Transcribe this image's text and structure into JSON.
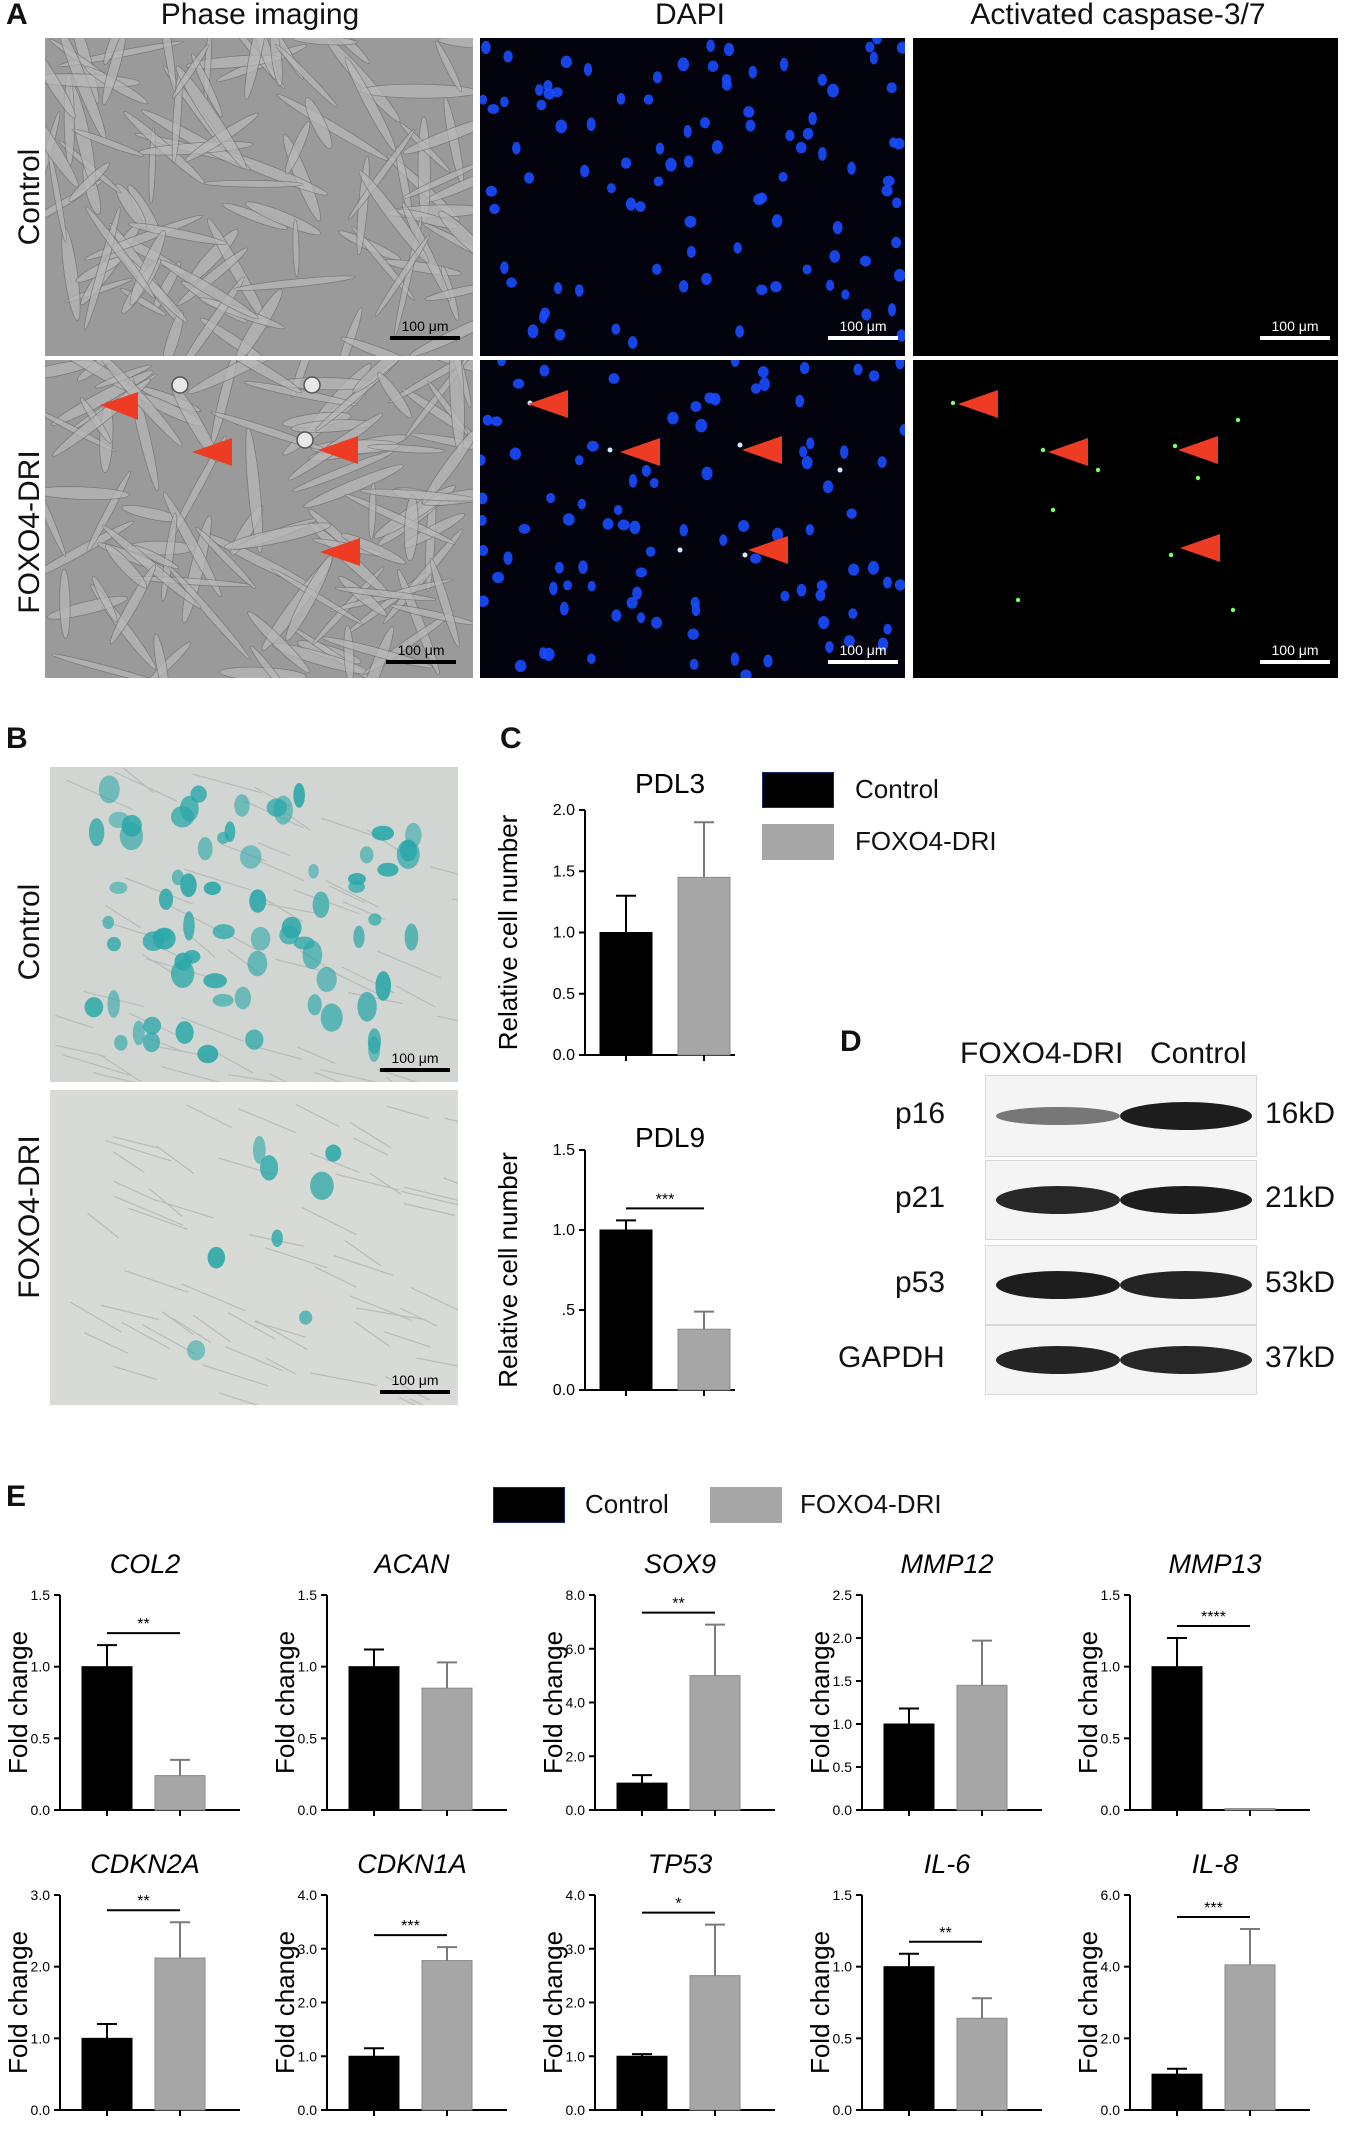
{
  "panel_letters": {
    "a": "A",
    "b": "B",
    "c": "C",
    "d": "D",
    "e": "E"
  },
  "panel_a": {
    "columns": [
      "Phase imaging",
      "DAPI",
      "Activated caspase-3/7"
    ],
    "rows": [
      "Control",
      "FOXO4-DRI"
    ],
    "scale": "100 μm"
  },
  "panel_b": {
    "rows": [
      "Control",
      "FOXO4-DRI"
    ],
    "scale": "100 μm"
  },
  "legend": {
    "control": "Control",
    "foxo": "FOXO4-DRI"
  },
  "colors": {
    "control": "#000000",
    "foxo": "#a6a6a6",
    "arrow": "#ee3b24",
    "dapi": "#1a4bff",
    "caspase": "#7dff6a",
    "xgal": "#2aa7a8"
  },
  "panel_d": {
    "lanes": [
      "FOXO4-DRI",
      "Control"
    ],
    "proteins": [
      {
        "name": "p16",
        "size": "16kD"
      },
      {
        "name": "p21",
        "size": "21kD"
      },
      {
        "name": "p53",
        "size": "53kD"
      },
      {
        "name": "GAPDH",
        "size": "37kD"
      }
    ]
  },
  "chart_data": [
    {
      "type": "bar",
      "title": "PDL3",
      "ylabel": "Relative cell number",
      "categories": [
        "Control",
        "FOXO4-DRI"
      ],
      "values": [
        1.0,
        1.45
      ],
      "errors": [
        0.3,
        0.45
      ],
      "ylim": [
        0,
        2.0
      ],
      "ticks": [
        "0.0",
        "0.5",
        "1.0",
        "1.5",
        "2.0"
      ],
      "tick_values": [
        0,
        0.5,
        1.0,
        1.5,
        2.0
      ],
      "sig": ""
    },
    {
      "type": "bar",
      "title": "PDL9",
      "ylabel": "Relative cell number",
      "categories": [
        "Control",
        "FOXO4-DRI"
      ],
      "values": [
        1.0,
        0.38
      ],
      "errors": [
        0.06,
        0.11
      ],
      "ylim": [
        0,
        1.5
      ],
      "ticks": [
        "0.0",
        ".5",
        "1.0",
        "1.5"
      ],
      "tick_values": [
        0,
        0.5,
        1.0,
        1.5
      ],
      "sig": "***"
    },
    {
      "type": "bar",
      "title": "COL2",
      "ylabel": "Fold change",
      "categories": [
        "Control",
        "FOXO4-DRI"
      ],
      "values": [
        1.0,
        0.24
      ],
      "errors": [
        0.15,
        0.11
      ],
      "ylim": [
        0,
        1.5
      ],
      "ticks": [
        "0.0",
        "0.5",
        "1.0",
        "1.5"
      ],
      "tick_values": [
        0,
        0.5,
        1.0,
        1.5
      ],
      "sig": "**"
    },
    {
      "type": "bar",
      "title": "ACAN",
      "ylabel": "Fold change",
      "categories": [
        "Control",
        "FOXO4-DRI"
      ],
      "values": [
        1.0,
        0.85
      ],
      "errors": [
        0.12,
        0.18
      ],
      "ylim": [
        0,
        1.5
      ],
      "ticks": [
        "0.0",
        "0.5",
        "1.0",
        "1.5"
      ],
      "tick_values": [
        0,
        0.5,
        1.0,
        1.5
      ],
      "sig": ""
    },
    {
      "type": "bar",
      "title": "SOX9",
      "ylabel": "Fold change",
      "categories": [
        "Control",
        "FOXO4-DRI"
      ],
      "values": [
        1.0,
        5.0
      ],
      "errors": [
        0.3,
        1.9
      ],
      "ylim": [
        0,
        8.0
      ],
      "ticks": [
        "0.0",
        "2.0",
        "4.0",
        "6.0",
        "8.0"
      ],
      "tick_values": [
        0,
        2,
        4,
        6,
        8
      ],
      "sig": "**"
    },
    {
      "type": "bar",
      "title": "MMP12",
      "ylabel": "Fold change",
      "categories": [
        "Control",
        "FOXO4-DRI"
      ],
      "values": [
        1.0,
        1.45
      ],
      "errors": [
        0.18,
        0.52
      ],
      "ylim": [
        0,
        2.5
      ],
      "ticks": [
        "0.0",
        "0.5",
        "1.0",
        "1.5",
        "2.0",
        "2.5"
      ],
      "tick_values": [
        0,
        0.5,
        1.0,
        1.5,
        2.0,
        2.5
      ],
      "sig": ""
    },
    {
      "type": "bar",
      "title": "MMP13",
      "ylabel": "Fold change",
      "categories": [
        "Control",
        "FOXO4-DRI"
      ],
      "values": [
        1.0,
        0.01
      ],
      "errors": [
        0.2,
        0.0
      ],
      "ylim": [
        0,
        1.5
      ],
      "ticks": [
        "0.0",
        "0.5",
        "1.0",
        "1.5"
      ],
      "tick_values": [
        0,
        0.5,
        1.0,
        1.5
      ],
      "sig": "****"
    },
    {
      "type": "bar",
      "title": "CDKN2A",
      "ylabel": "Fold change",
      "categories": [
        "Control",
        "FOXO4-DRI"
      ],
      "values": [
        1.0,
        2.12
      ],
      "errors": [
        0.2,
        0.5
      ],
      "ylim": [
        0,
        3.0
      ],
      "ticks": [
        "0.0",
        "1.0",
        "2.0",
        "3.0"
      ],
      "tick_values": [
        0,
        1,
        2,
        3
      ],
      "sig": "**"
    },
    {
      "type": "bar",
      "title": "CDKN1A",
      "ylabel": "Fold change",
      "categories": [
        "Control",
        "FOXO4-DRI"
      ],
      "values": [
        1.0,
        2.78
      ],
      "errors": [
        0.15,
        0.25
      ],
      "ylim": [
        0,
        4.0
      ],
      "ticks": [
        "0.0",
        "1.0",
        "2.0",
        "3.0",
        "4.0"
      ],
      "tick_values": [
        0,
        1,
        2,
        3,
        4
      ],
      "sig": "***"
    },
    {
      "type": "bar",
      "title": "TP53",
      "ylabel": "Fold change",
      "categories": [
        "Control",
        "FOXO4-DRI"
      ],
      "values": [
        1.0,
        2.5
      ],
      "errors": [
        0.04,
        0.95
      ],
      "ylim": [
        0,
        4.0
      ],
      "ticks": [
        "0.0",
        "1.0",
        "2.0",
        "3.0",
        "4.0"
      ],
      "tick_values": [
        0,
        1,
        2,
        3,
        4
      ],
      "sig": "*"
    },
    {
      "type": "bar",
      "title": "IL-6",
      "ylabel": "Fold change",
      "categories": [
        "Control",
        "FOXO4-DRI"
      ],
      "values": [
        1.0,
        0.64
      ],
      "errors": [
        0.09,
        0.14
      ],
      "ylim": [
        0,
        1.5
      ],
      "ticks": [
        "0.0",
        "0.5",
        "1.0",
        "1.5"
      ],
      "tick_values": [
        0,
        0.5,
        1.0,
        1.5
      ],
      "sig": "**"
    },
    {
      "type": "bar",
      "title": "IL-8",
      "ylabel": "Fold change",
      "categories": [
        "Control",
        "FOXO4-DRI"
      ],
      "values": [
        1.0,
        4.05
      ],
      "errors": [
        0.15,
        1.0
      ],
      "ylim": [
        0,
        6.0
      ],
      "ticks": [
        "0.0",
        "2.0",
        "4.0",
        "6.0"
      ],
      "tick_values": [
        0,
        2,
        4,
        6
      ],
      "sig": "***"
    }
  ]
}
